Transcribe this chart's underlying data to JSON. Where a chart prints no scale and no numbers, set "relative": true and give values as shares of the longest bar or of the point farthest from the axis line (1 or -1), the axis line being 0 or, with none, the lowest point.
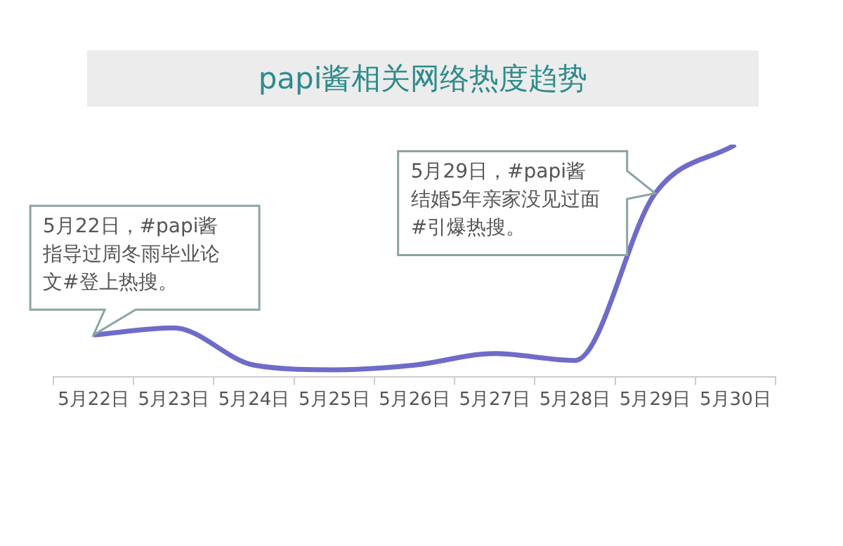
{
  "chart_data": {
    "type": "line",
    "title": "papi酱相关网络热度趋势",
    "relative": true,
    "categories": [
      "5月22日",
      "5月23日",
      "5月24日",
      "5月25日",
      "5月26日",
      "5月27日",
      "5月28日",
      "5月29日",
      "5月30日"
    ],
    "series": [
      {
        "color": "#6f6bc9",
        "values": [
          0.18,
          0.21,
          0.05,
          0.03,
          0.05,
          0.1,
          0.07,
          0.79,
          1
        ]
      }
    ],
    "annotations": [
      {
        "text": "5月22日，#papi酱指导过周冬雨毕业论文#登上热搜。",
        "x": "5月22日",
        "y": 0.18
      },
      {
        "text": "5月29日，#papi酱结婚5年亲家没见过面#引爆热搜。",
        "x": "5月29日",
        "y": 0.79
      }
    ],
    "grid": false,
    "legend": false,
    "marker": "none",
    "line_style": "solid"
  }
}
